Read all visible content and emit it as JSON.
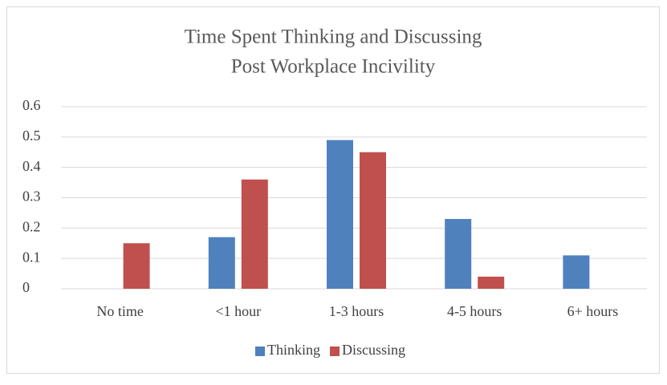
{
  "chart_data": {
    "type": "bar",
    "title": [
      "Time Spent Thinking and Discussing",
      "Post Workplace Incivility"
    ],
    "categories": [
      "No time",
      "<1 hour",
      "1-3 hours",
      "4-5 hours",
      "6+ hours"
    ],
    "series": [
      {
        "name": "Thinking",
        "color": "#4f81bd",
        "values": [
          0,
          0.17,
          0.49,
          0.23,
          0.11
        ]
      },
      {
        "name": "Discussing",
        "color": "#c0504d",
        "values": [
          0.15,
          0.36,
          0.45,
          0.04,
          0
        ]
      }
    ],
    "ylim": [
      0,
      0.6
    ],
    "yticks": [
      0,
      0.1,
      0.2,
      0.3,
      0.4,
      0.5,
      0.6
    ],
    "grid": true,
    "legend": "bottom"
  }
}
